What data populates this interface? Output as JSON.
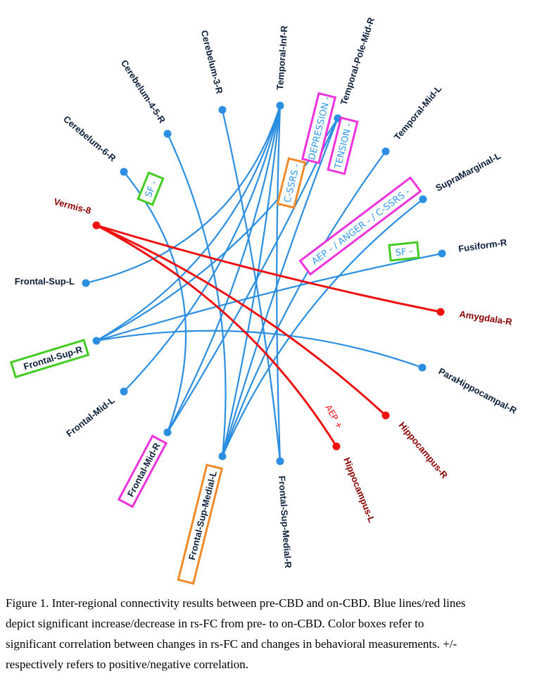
{
  "nodes": {
    "cerebelum_6_r": "Cerebelum-6-R",
    "cerebelum_4_5_r": "Cerebelum-4-5-R",
    "cerebelum_3_r": "Cerebelum-3-R",
    "temporal_inf_r": "Temporal-Inf-R",
    "temporal_pole_mid_r": "Temporal-Pole-Mid-R",
    "temporal_mid_l": "Temporal-Mid-L",
    "supramarginal_l": "SupraMarginal-L",
    "fusiform_r": "Fusiform-R",
    "amygdala_r": "Amygdala-R",
    "parahippocampal_r": "ParaHippocampal-R",
    "hippocampus_r": "Hippocampus-R",
    "hippocampus_l": "Hippocampus-L",
    "frontal_sup_medial_r": "Frontal-Sup-Medial-R",
    "frontal_sup_medial_l": "Frontal-Sup-Medial-L",
    "frontal_mid_r": "Frontal-Mid-R",
    "frontal_mid_l": "Frontal-Mid-L",
    "frontal_sup_r": "Frontal-Sup-R",
    "frontal_sup_l": "Frontal-Sup-L",
    "vermis_8": "Vermis-8"
  },
  "edges": {
    "increase": [
      [
        "cerebelum_6_r",
        "frontal_mid_r"
      ],
      [
        "cerebelum_4_5_r",
        "frontal_sup_medial_l"
      ],
      [
        "cerebelum_3_r",
        "frontal_sup_medial_r"
      ],
      [
        "frontal_sup_l",
        "temporal_inf_r"
      ],
      [
        "temporal_inf_r",
        "frontal_sup_r"
      ],
      [
        "temporal_inf_r",
        "frontal_mid_l"
      ],
      [
        "temporal_inf_r",
        "frontal_mid_r"
      ],
      [
        "temporal_inf_r",
        "frontal_sup_medial_l"
      ],
      [
        "temporal_inf_r",
        "frontal_sup_medial_r"
      ],
      [
        "temporal_pole_mid_r",
        "frontal_sup_r"
      ],
      [
        "temporal_pole_mid_r",
        "frontal_mid_r"
      ],
      [
        "temporal_pole_mid_r",
        "frontal_sup_medial_l"
      ],
      [
        "temporal_mid_l",
        "frontal_sup_medial_l"
      ],
      [
        "supramarginal_l",
        "frontal_sup_medial_l"
      ],
      [
        "fusiform_r",
        "frontal_sup_r"
      ],
      [
        "parahippocampal_r",
        "frontal_sup_r"
      ]
    ],
    "decrease": [
      [
        "vermis_8",
        "amygdala_r"
      ],
      [
        "vermis_8",
        "hippocampus_r"
      ],
      [
        "vermis_8",
        "hippocampus_l"
      ]
    ]
  },
  "tags": {
    "sf_cerebelum": "SF -",
    "depression": "DEPRESSION -",
    "cssrs": "C-SSRS -",
    "tension": "TENSION -",
    "aep_anger_cssrs": "AEP - / ANGER - / C-SSRS -",
    "sf_fusiform": "SF -",
    "aep_plus": "AEP +"
  },
  "colors": {
    "increase": "#2b8ee0",
    "decrease": "#ee1111",
    "green_box": "#44cc22",
    "magenta_box": "#ee33dd",
    "orange_box": "#f08a2a"
  },
  "caption": {
    "line1": "Figure 1. Inter-regional connectivity results between pre-CBD and on-CBD. Blue lines/red lines",
    "line2": "depict significant increase/decrease in rs-FC from pre- to on-CBD. Color boxes refer to",
    "line3": "significant correlation between changes in rs-FC and changes in behavioral measurements. +/-",
    "line4": "respectively refers to positive/negative correlation."
  }
}
